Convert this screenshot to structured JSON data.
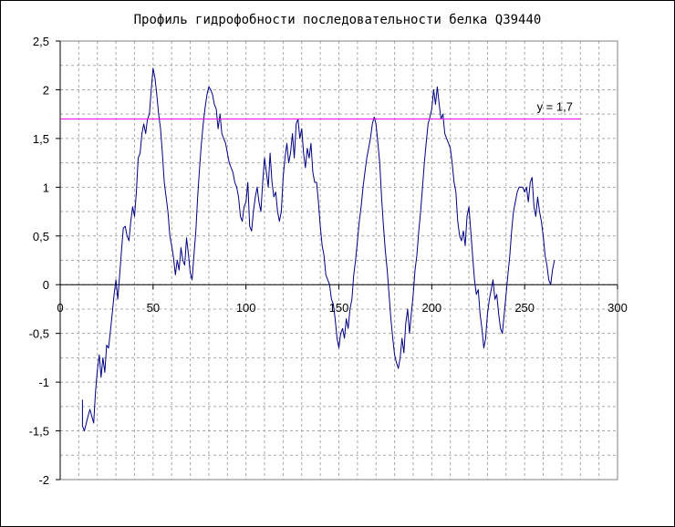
{
  "chart_data": {
    "type": "line",
    "title": "Профиль гидрофобности последовательности белка Q39440",
    "xlabel": "",
    "ylabel": "",
    "xlim": [
      0,
      300
    ],
    "ylim": [
      -2,
      2.5
    ],
    "x_ticks": [
      "0",
      "50",
      "100",
      "150",
      "200",
      "250",
      "300"
    ],
    "y_ticks": [
      "2,5",
      "2",
      "1,5",
      "1",
      "0,5",
      "0",
      "-0,5",
      "-1",
      "-1,5",
      "-2"
    ],
    "x_tick_values": [
      0,
      50,
      100,
      150,
      200,
      250,
      300
    ],
    "y_tick_values": [
      2.5,
      2,
      1.5,
      1,
      0.5,
      0,
      -0.5,
      -1,
      -1.5,
      -2
    ],
    "grid": true,
    "grid_style": "dashed",
    "series": [
      {
        "color": "#000080",
        "points": [
          [
            12,
            -1.18
          ],
          [
            12,
            -1.45
          ],
          [
            13,
            -1.5
          ],
          [
            15,
            -1.35
          ],
          [
            16,
            -1.28
          ],
          [
            17,
            -1.35
          ],
          [
            18,
            -1.42
          ],
          [
            19,
            -1.1
          ],
          [
            20,
            -0.88
          ],
          [
            21,
            -0.72
          ],
          [
            22,
            -0.95
          ],
          [
            23,
            -0.75
          ],
          [
            24,
            -0.9
          ],
          [
            25,
            -0.62
          ],
          [
            26,
            -0.65
          ],
          [
            27,
            -0.48
          ],
          [
            28,
            -0.3
          ],
          [
            29,
            -0.1
          ],
          [
            30,
            0.05
          ],
          [
            31,
            -0.15
          ],
          [
            32,
            0.1
          ],
          [
            33,
            0.35
          ],
          [
            34,
            0.58
          ],
          [
            35,
            0.6
          ],
          [
            36,
            0.5
          ],
          [
            37,
            0.45
          ],
          [
            38,
            0.65
          ],
          [
            39,
            0.8
          ],
          [
            40,
            0.7
          ],
          [
            41,
            0.95
          ],
          [
            42,
            1.3
          ],
          [
            43,
            1.35
          ],
          [
            44,
            1.55
          ],
          [
            45,
            1.65
          ],
          [
            46,
            1.55
          ],
          [
            47,
            1.7
          ],
          [
            48,
            1.75
          ],
          [
            49,
            2.0
          ],
          [
            50,
            2.22
          ],
          [
            51,
            2.12
          ],
          [
            52,
            1.95
          ],
          [
            53,
            1.75
          ],
          [
            54,
            1.6
          ],
          [
            55,
            1.35
          ],
          [
            56,
            1.05
          ],
          [
            57,
            0.9
          ],
          [
            58,
            0.75
          ],
          [
            59,
            0.5
          ],
          [
            60,
            0.4
          ],
          [
            61,
            0.28
          ],
          [
            62,
            0.1
          ],
          [
            63,
            0.25
          ],
          [
            64,
            0.15
          ],
          [
            65,
            0.38
          ],
          [
            66,
            0.25
          ],
          [
            67,
            0.2
          ],
          [
            68,
            0.48
          ],
          [
            69,
            0.32
          ],
          [
            70,
            0.12
          ],
          [
            71,
            0.05
          ],
          [
            72,
            0.3
          ],
          [
            73,
            0.55
          ],
          [
            74,
            0.9
          ],
          [
            75,
            1.2
          ],
          [
            76,
            1.45
          ],
          [
            77,
            1.65
          ],
          [
            78,
            1.82
          ],
          [
            79,
            1.95
          ],
          [
            80,
            2.03
          ],
          [
            81,
            2.0
          ],
          [
            82,
            1.95
          ],
          [
            83,
            1.85
          ],
          [
            84,
            1.8
          ],
          [
            85,
            1.6
          ],
          [
            86,
            1.75
          ],
          [
            87,
            1.55
          ],
          [
            88,
            1.5
          ],
          [
            89,
            1.45
          ],
          [
            90,
            1.35
          ],
          [
            91,
            1.25
          ],
          [
            92,
            1.2
          ],
          [
            93,
            1.15
          ],
          [
            94,
            1.05
          ],
          [
            95,
            1.0
          ],
          [
            96,
            0.9
          ],
          [
            97,
            0.7
          ],
          [
            98,
            0.65
          ],
          [
            99,
            0.8
          ],
          [
            100,
            0.85
          ],
          [
            101,
            1.05
          ],
          [
            102,
            0.6
          ],
          [
            103,
            0.55
          ],
          [
            104,
            0.75
          ],
          [
            105,
            0.9
          ],
          [
            106,
            1.0
          ],
          [
            107,
            0.85
          ],
          [
            108,
            0.75
          ],
          [
            109,
            1.05
          ],
          [
            110,
            1.3
          ],
          [
            111,
            1.15
          ],
          [
            112,
            1.0
          ],
          [
            113,
            1.35
          ],
          [
            114,
            1.05
          ],
          [
            115,
            0.9
          ],
          [
            116,
            0.95
          ],
          [
            117,
            0.75
          ],
          [
            118,
            0.65
          ],
          [
            119,
            0.75
          ],
          [
            120,
            1.1
          ],
          [
            121,
            1.3
          ],
          [
            122,
            1.45
          ],
          [
            123,
            1.25
          ],
          [
            124,
            1.35
          ],
          [
            125,
            1.55
          ],
          [
            126,
            1.3
          ],
          [
            127,
            1.65
          ],
          [
            128,
            1.7
          ],
          [
            129,
            1.5
          ],
          [
            130,
            1.6
          ],
          [
            131,
            1.35
          ],
          [
            132,
            1.2
          ],
          [
            133,
            1.4
          ],
          [
            134,
            1.3
          ],
          [
            135,
            1.45
          ],
          [
            136,
            1.15
          ],
          [
            137,
            1.05
          ],
          [
            138,
            1.05
          ],
          [
            139,
            0.85
          ],
          [
            140,
            0.6
          ],
          [
            141,
            0.4
          ],
          [
            142,
            0.3
          ],
          [
            143,
            0.1
          ],
          [
            144,
            0.05
          ],
          [
            145,
            0.0
          ],
          [
            146,
            -0.15
          ],
          [
            147,
            -0.2
          ],
          [
            148,
            -0.35
          ],
          [
            149,
            -0.55
          ],
          [
            150,
            -0.65
          ],
          [
            151,
            -0.5
          ],
          [
            152,
            -0.45
          ],
          [
            153,
            -0.55
          ],
          [
            154,
            -0.35
          ],
          [
            155,
            -0.45
          ],
          [
            156,
            -0.25
          ],
          [
            157,
            -0.15
          ],
          [
            158,
            0.1
          ],
          [
            159,
            0.25
          ],
          [
            160,
            0.45
          ],
          [
            161,
            0.65
          ],
          [
            162,
            0.8
          ],
          [
            163,
            1.0
          ],
          [
            164,
            1.15
          ],
          [
            165,
            1.3
          ],
          [
            166,
            1.4
          ],
          [
            167,
            1.5
          ],
          [
            168,
            1.65
          ],
          [
            169,
            1.72
          ],
          [
            170,
            1.65
          ],
          [
            171,
            1.45
          ],
          [
            172,
            1.25
          ],
          [
            173,
            0.9
          ],
          [
            174,
            0.6
          ],
          [
            175,
            0.35
          ],
          [
            176,
            0.15
          ],
          [
            177,
            -0.1
          ],
          [
            178,
            -0.35
          ],
          [
            179,
            -0.55
          ],
          [
            180,
            -0.72
          ],
          [
            181,
            -0.8
          ],
          [
            182,
            -0.86
          ],
          [
            183,
            -0.75
          ],
          [
            184,
            -0.55
          ],
          [
            185,
            -0.7
          ],
          [
            186,
            -0.4
          ],
          [
            187,
            -0.25
          ],
          [
            188,
            -0.5
          ],
          [
            189,
            -0.3
          ],
          [
            190,
            -0.1
          ],
          [
            191,
            0.15
          ],
          [
            192,
            0.3
          ],
          [
            193,
            0.55
          ],
          [
            194,
            0.75
          ],
          [
            195,
            1.0
          ],
          [
            196,
            1.25
          ],
          [
            197,
            1.45
          ],
          [
            198,
            1.65
          ],
          [
            199,
            1.72
          ],
          [
            200,
            1.8
          ],
          [
            201,
            2.0
          ],
          [
            202,
            1.85
          ],
          [
            203,
            2.03
          ],
          [
            204,
            1.85
          ],
          [
            205,
            1.7
          ],
          [
            206,
            1.75
          ],
          [
            207,
            1.55
          ],
          [
            208,
            1.5
          ],
          [
            209,
            1.45
          ],
          [
            210,
            1.4
          ],
          [
            211,
            1.25
          ],
          [
            212,
            1.05
          ],
          [
            213,
            0.95
          ],
          [
            214,
            0.65
          ],
          [
            215,
            0.5
          ],
          [
            216,
            0.45
          ],
          [
            217,
            0.55
          ],
          [
            218,
            0.4
          ],
          [
            219,
            0.7
          ],
          [
            220,
            0.8
          ],
          [
            221,
            0.55
          ],
          [
            222,
            0.3
          ],
          [
            223,
            0.05
          ],
          [
            224,
            -0.1
          ],
          [
            225,
            -0.05
          ],
          [
            226,
            -0.3
          ],
          [
            227,
            -0.45
          ],
          [
            228,
            -0.65
          ],
          [
            229,
            -0.55
          ],
          [
            230,
            -0.3
          ],
          [
            231,
            -0.15
          ],
          [
            232,
            -0.05
          ],
          [
            233,
            0.05
          ],
          [
            234,
            -0.15
          ],
          [
            235,
            -0.1
          ],
          [
            236,
            -0.3
          ],
          [
            237,
            -0.45
          ],
          [
            238,
            -0.5
          ],
          [
            239,
            -0.3
          ],
          [
            240,
            -0.1
          ],
          [
            241,
            0.1
          ],
          [
            242,
            0.3
          ],
          [
            243,
            0.55
          ],
          [
            244,
            0.75
          ],
          [
            245,
            0.85
          ],
          [
            246,
            0.95
          ],
          [
            247,
            1.0
          ],
          [
            248,
            1.0
          ],
          [
            249,
            1.0
          ],
          [
            250,
            0.95
          ],
          [
            251,
            1.0
          ],
          [
            252,
            0.85
          ],
          [
            253,
            1.05
          ],
          [
            254,
            1.1
          ],
          [
            255,
            0.8
          ],
          [
            256,
            0.7
          ],
          [
            257,
            0.9
          ],
          [
            258,
            0.75
          ],
          [
            259,
            0.65
          ],
          [
            260,
            0.5
          ],
          [
            261,
            0.3
          ],
          [
            262,
            0.2
          ],
          [
            263,
            0.05
          ],
          [
            264,
            0.0
          ],
          [
            265,
            0.15
          ],
          [
            266,
            0.25
          ]
        ]
      },
      {
        "color": "#ff00ff",
        "points": [
          [
            0,
            1.7
          ],
          [
            280,
            1.7
          ]
        ]
      }
    ],
    "annotations": [
      {
        "text": "y = 1,7",
        "x": 280,
        "y": 1.7,
        "anchor": "above-end"
      }
    ]
  }
}
